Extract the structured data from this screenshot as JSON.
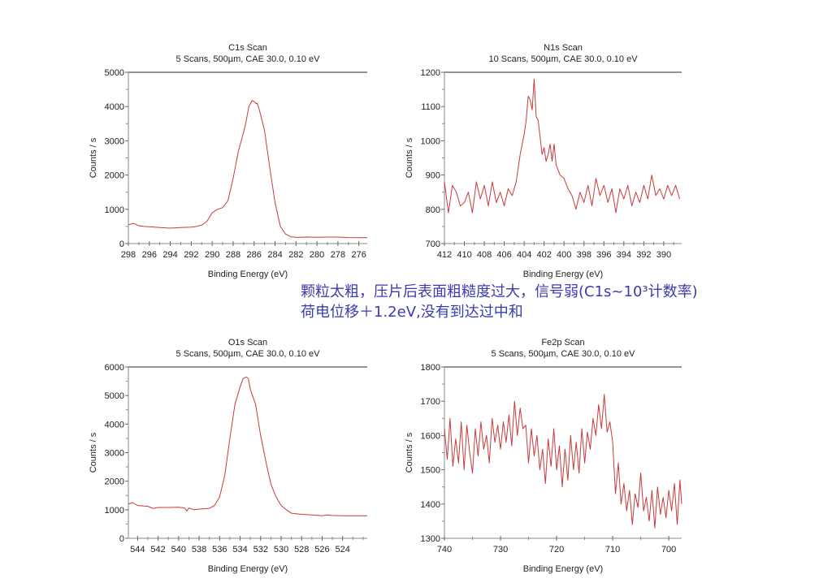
{
  "line_color": "#c83a3a",
  "annotation_color": "#3b3bb0",
  "annotation": {
    "line1": "颗粒太粗，压片后表面粗糙度过大，信号弱(C1s~10³计数率)",
    "line2": "荷电位移＋1.2eV,没有到达过中和"
  },
  "chart_data": [
    {
      "type": "line",
      "title": "C1s Scan",
      "subtitle": "5 Scans,  500µm,  CAE 30.0,  0.10 eV",
      "xlabel": "Binding Energy (eV)",
      "ylabel": "Counts / s",
      "xlim": [
        298,
        275.2
      ],
      "ylim": [
        0,
        5000
      ],
      "xticks": [
        298,
        296,
        294,
        292,
        290,
        288,
        286,
        284,
        282,
        280,
        278,
        276
      ],
      "yticks": [
        0,
        1000,
        2000,
        3000,
        4000,
        5000
      ],
      "grid": false,
      "x": [
        298,
        297.5,
        297,
        296.5,
        296,
        295,
        294,
        293,
        292,
        291.5,
        291,
        290.5,
        290,
        289.5,
        289,
        288.5,
        288,
        287.5,
        287,
        286.8,
        286.5,
        286.2,
        286,
        285.8,
        285.7,
        285.5,
        285,
        284.5,
        284,
        283.5,
        283,
        282.5,
        282,
        281,
        280,
        279,
        278,
        277,
        276,
        275.2
      ],
      "y": [
        550,
        590,
        520,
        500,
        490,
        470,
        450,
        470,
        480,
        500,
        540,
        650,
        900,
        1000,
        1050,
        1250,
        1900,
        2700,
        3250,
        3500,
        4000,
        4170,
        4150,
        4080,
        4100,
        3900,
        3300,
        2200,
        1200,
        500,
        280,
        200,
        180,
        190,
        185,
        190,
        190,
        175,
        170,
        170
      ]
    },
    {
      "type": "line",
      "title": "N1s Scan",
      "subtitle": "10 Scans,  500µm,  CAE 30.0,  0.10 eV",
      "xlabel": "Binding Energy (eV)",
      "ylabel": "Counts / s",
      "xlim": [
        412,
        388.2
      ],
      "ylim": [
        700,
        1200
      ],
      "xticks": [
        412,
        410,
        408,
        406,
        404,
        402,
        400,
        398,
        396,
        394,
        392,
        390
      ],
      "yticks": [
        700,
        800,
        900,
        1000,
        1100,
        1200
      ],
      "grid": false,
      "x": [
        412,
        411.6,
        411.2,
        410.8,
        410.4,
        410,
        409.6,
        409.2,
        408.8,
        408.4,
        408,
        407.6,
        407.2,
        406.8,
        406.4,
        406,
        405.6,
        405.2,
        404.8,
        404.4,
        404,
        403.8,
        403.6,
        403.4,
        403.2,
        403,
        402.8,
        402.6,
        402.4,
        402.2,
        402,
        401.8,
        401.6,
        401.4,
        401.2,
        401,
        400.8,
        400.4,
        400,
        399.6,
        399.2,
        398.8,
        398.4,
        398,
        397.6,
        397.2,
        396.8,
        396.4,
        396,
        395.6,
        395.2,
        394.8,
        394.4,
        394,
        393.6,
        393.2,
        392.8,
        392.4,
        392,
        391.6,
        391.2,
        390.8,
        390.4,
        390,
        389.6,
        389.2,
        388.8,
        388.4
      ],
      "y": [
        880,
        790,
        870,
        850,
        810,
        820,
        850,
        790,
        880,
        830,
        870,
        810,
        880,
        820,
        850,
        810,
        860,
        840,
        880,
        960,
        1020,
        1060,
        1130,
        1120,
        1090,
        1180,
        1070,
        1060,
        1010,
        960,
        980,
        940,
        960,
        990,
        940,
        990,
        930,
        900,
        890,
        860,
        840,
        800,
        850,
        820,
        870,
        810,
        890,
        840,
        870,
        820,
        860,
        790,
        860,
        830,
        870,
        810,
        850,
        820,
        870,
        830,
        900,
        840,
        860,
        830,
        870,
        840,
        870,
        830
      ]
    },
    {
      "type": "line",
      "title": "O1s Scan",
      "subtitle": "5 Scans,  500µm,  CAE 30.0,  0.10 eV",
      "xlabel": "Binding Energy (eV)",
      "ylabel": "Counts / s",
      "xlim": [
        544.9,
        521.6
      ],
      "ylim": [
        0,
        6000
      ],
      "xticks": [
        544,
        542,
        540,
        538,
        536,
        534,
        532,
        530,
        528,
        526,
        524
      ],
      "yticks": [
        0,
        1000,
        2000,
        3000,
        4000,
        5000,
        6000
      ],
      "grid": false,
      "x": [
        544.9,
        544.5,
        544,
        543,
        542.5,
        542,
        541,
        540,
        539.4,
        539.2,
        539,
        538.5,
        538,
        537,
        536.5,
        536,
        535.5,
        535,
        534.5,
        534,
        533.7,
        533.4,
        533.2,
        533,
        532.5,
        532,
        531.5,
        531,
        530.5,
        530,
        529.5,
        529,
        528,
        527,
        526,
        525.5,
        525,
        524,
        523,
        521.6
      ],
      "y": [
        1200,
        1250,
        1150,
        1120,
        1050,
        1080,
        1080,
        1090,
        1060,
        950,
        1060,
        1000,
        1020,
        1050,
        1150,
        1450,
        2200,
        3500,
        4700,
        5300,
        5600,
        5650,
        5600,
        5200,
        4700,
        3600,
        2700,
        1900,
        1450,
        1150,
        1000,
        880,
        840,
        820,
        790,
        820,
        800,
        790,
        790,
        790
      ]
    },
    {
      "type": "line",
      "title": "Fe2p Scan",
      "subtitle": "5 Scans,  500µm,  CAE 30.0,  0.10 eV",
      "xlabel": "Binding Energy (eV)",
      "ylabel": "Counts / s",
      "xlim": [
        740,
        697.7
      ],
      "ylim": [
        1300,
        1800
      ],
      "xticks": [
        740,
        730,
        720,
        710,
        700
      ],
      "yticks": [
        1300,
        1400,
        1500,
        1600,
        1700,
        1800
      ],
      "grid": false,
      "x": [
        740,
        739.5,
        739,
        738.5,
        738,
        737.5,
        737,
        736.5,
        736,
        735.5,
        735,
        734.5,
        734,
        733.5,
        733,
        732.5,
        732,
        731.5,
        731,
        730.5,
        730,
        729.5,
        729,
        728.5,
        728,
        727.5,
        727,
        726.5,
        726,
        725.5,
        725,
        724.5,
        724,
        723.5,
        723,
        722.5,
        722,
        721.5,
        721,
        720.5,
        720,
        719.5,
        719,
        718.5,
        718,
        717.5,
        717,
        716.5,
        716,
        715.5,
        715,
        714.5,
        714,
        713.5,
        713,
        712.5,
        712,
        711.5,
        711,
        710.5,
        710,
        709.5,
        709,
        708.5,
        708,
        707.5,
        707,
        706.5,
        706,
        705.5,
        705,
        704.5,
        704,
        703.5,
        703,
        702.5,
        702,
        701.5,
        701,
        700.5,
        700,
        699.5,
        699,
        698.5,
        698,
        697.7
      ],
      "y": [
        1620,
        1530,
        1650,
        1510,
        1590,
        1520,
        1640,
        1500,
        1630,
        1550,
        1490,
        1620,
        1540,
        1640,
        1560,
        1600,
        1520,
        1650,
        1580,
        1630,
        1560,
        1640,
        1580,
        1660,
        1570,
        1700,
        1600,
        1680,
        1620,
        1630,
        1520,
        1620,
        1540,
        1600,
        1500,
        1560,
        1460,
        1590,
        1510,
        1620,
        1500,
        1570,
        1450,
        1560,
        1470,
        1600,
        1500,
        1580,
        1490,
        1620,
        1520,
        1610,
        1560,
        1650,
        1600,
        1690,
        1620,
        1720,
        1610,
        1640,
        1580,
        1430,
        1520,
        1400,
        1460,
        1380,
        1440,
        1340,
        1430,
        1390,
        1490,
        1380,
        1420,
        1350,
        1440,
        1330,
        1450,
        1370,
        1420,
        1360,
        1440,
        1380,
        1460,
        1340,
        1470,
        1400
      ]
    }
  ]
}
